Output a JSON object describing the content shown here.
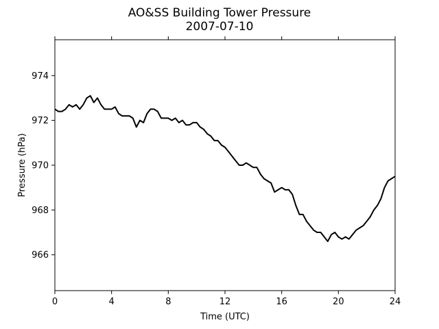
{
  "chart_data": {
    "type": "line",
    "title": "AO&SS Building Tower Pressure",
    "subtitle": "2007-07-10",
    "xlabel": "Time (UTC)",
    "ylabel": "Pressure (hPa)",
    "xlim": [
      0,
      24
    ],
    "ylim": [
      964.4,
      975.6
    ],
    "xticks": [
      0,
      4,
      8,
      12,
      16,
      20,
      24
    ],
    "yticks": [
      966,
      968,
      970,
      972,
      974
    ],
    "grid": false,
    "line_color": "#000000",
    "series": [
      {
        "x": [
          0,
          0.25,
          0.5,
          0.75,
          1.0,
          1.25,
          1.5,
          1.75,
          2.0,
          2.25,
          2.5,
          2.75,
          3.0,
          3.25,
          3.5,
          3.75,
          4.0,
          4.25,
          4.5,
          4.75,
          5.0,
          5.25,
          5.5,
          5.75,
          6.0,
          6.25,
          6.5,
          6.75,
          7.0,
          7.25,
          7.5,
          7.75,
          8.0,
          8.25,
          8.5,
          8.75,
          9.0,
          9.25,
          9.5,
          9.75,
          10.0,
          10.25,
          10.5,
          10.75,
          11.0,
          11.25,
          11.5,
          11.75,
          12.0,
          12.25,
          12.5,
          12.75,
          13.0,
          13.25,
          13.5,
          13.75,
          14.0,
          14.25,
          14.5,
          14.75,
          15.0,
          15.25,
          15.5,
          15.75,
          16.0,
          16.25,
          16.5,
          16.75,
          17.0,
          17.25,
          17.5,
          17.75,
          18.0,
          18.25,
          18.5,
          18.75,
          19.0,
          19.25,
          19.5,
          19.75,
          20.0,
          20.25,
          20.5,
          20.75,
          21.0,
          21.25,
          21.5,
          21.75,
          22.0,
          22.25,
          22.5,
          22.75,
          23.0,
          23.25,
          23.5,
          23.75,
          24.0
        ],
        "y": [
          972.5,
          972.4,
          972.4,
          972.5,
          972.7,
          972.6,
          972.7,
          972.5,
          972.7,
          973.0,
          973.1,
          972.8,
          973.0,
          972.7,
          972.5,
          972.5,
          972.5,
          972.6,
          972.3,
          972.2,
          972.2,
          972.2,
          972.1,
          971.7,
          972.0,
          971.9,
          972.3,
          972.5,
          972.5,
          972.4,
          972.1,
          972.1,
          972.1,
          972.0,
          972.1,
          971.9,
          972.0,
          971.8,
          971.8,
          971.9,
          971.9,
          971.7,
          971.6,
          971.4,
          971.3,
          971.1,
          971.1,
          970.9,
          970.8,
          970.6,
          970.4,
          970.2,
          970.0,
          970.0,
          970.1,
          970.0,
          969.9,
          969.9,
          969.6,
          969.4,
          969.3,
          969.2,
          968.8,
          968.9,
          969.0,
          968.9,
          968.9,
          968.7,
          968.2,
          967.8,
          967.8,
          967.5,
          967.3,
          967.1,
          967.0,
          967.0,
          966.8,
          966.6,
          966.9,
          967.0,
          966.8,
          966.7,
          966.8,
          966.7,
          966.9,
          967.1,
          967.2,
          967.3,
          967.5,
          967.7,
          968.0,
          968.2,
          968.5,
          969.0,
          969.3,
          969.4,
          969.5
        ]
      }
    ]
  }
}
